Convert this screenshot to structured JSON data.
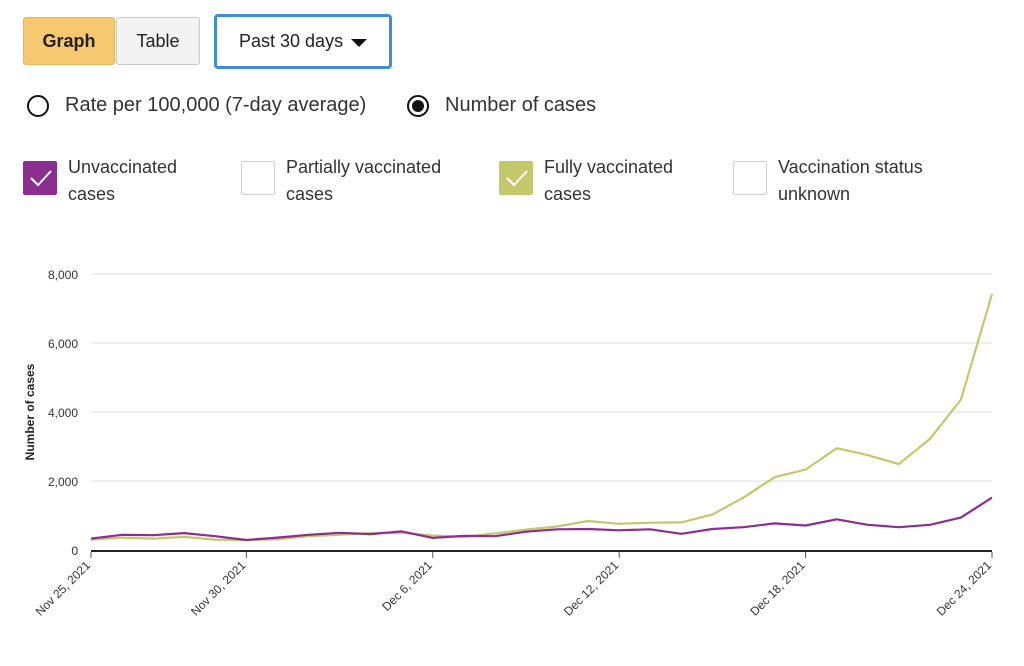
{
  "view_toggle": {
    "graph_label": "Graph",
    "table_label": "Table",
    "selected": "Graph"
  },
  "range_select": {
    "value": "Past 30 days"
  },
  "metric_radios": [
    {
      "label": "Rate per 100,000 (7-day average)",
      "selected": false
    },
    {
      "label": "Number of cases",
      "selected": true
    }
  ],
  "status_checkboxes": [
    {
      "label_line1": "Unvaccinated",
      "label_line2": "cases",
      "checked": true,
      "color": "#8b2e8f"
    },
    {
      "label_line1": "Partially vaccinated",
      "label_line2": "cases",
      "checked": false,
      "color": "#ffffff"
    },
    {
      "label_line1": "Fully vaccinated",
      "label_line2": "cases",
      "checked": true,
      "color": "#c3c86a"
    },
    {
      "label_line1": "Vaccination status",
      "label_line2": "unknown",
      "checked": false,
      "color": "#ffffff"
    }
  ],
  "chart_data": {
    "type": "line",
    "ylabel": "Number of cases",
    "ylim": [
      0,
      8000
    ],
    "yticks": [
      "0",
      "2,000",
      "4,000",
      "6,000",
      "8,000"
    ],
    "yticks_values": [
      0,
      2000,
      4000,
      6000,
      8000
    ],
    "x_tick_labels": [
      "Nov 25, 2021",
      "Nov 30, 2021",
      "Dec 6, 2021",
      "Dec 12, 2021",
      "Dec 18, 2021",
      "Dec 24, 2021"
    ],
    "x_tick_index": [
      0,
      5,
      11,
      17,
      23,
      29
    ],
    "x_labels_daily": [
      "Nov 25, 2021",
      "Nov 26, 2021",
      "Nov 27, 2021",
      "Nov 28, 2021",
      "Nov 29, 2021",
      "Nov 30, 2021",
      "Dec 1, 2021",
      "Dec 2, 2021",
      "Dec 3, 2021",
      "Dec 4, 2021",
      "Dec 5, 2021",
      "Dec 6, 2021",
      "Dec 7, 2021",
      "Dec 8, 2021",
      "Dec 9, 2021",
      "Dec 10, 2021",
      "Dec 11, 2021",
      "Dec 12, 2021",
      "Dec 13, 2021",
      "Dec 14, 2021",
      "Dec 15, 2021",
      "Dec 16, 2021",
      "Dec 17, 2021",
      "Dec 18, 2021",
      "Dec 19, 2021",
      "Dec 20, 2021",
      "Dec 21, 2021",
      "Dec 22, 2021",
      "Dec 23, 2021",
      "Dec 24, 2021"
    ],
    "grid": true,
    "series": [
      {
        "name": "Unvaccinated",
        "color": "#8b2e8f",
        "values": [
          330,
          440,
          430,
          490,
          400,
          290,
          360,
          440,
          500,
          460,
          540,
          350,
          410,
          400,
          530,
          600,
          610,
          570,
          600,
          470,
          610,
          660,
          770,
          710,
          890,
          730,
          660,
          730,
          940,
          1520
        ]
      },
      {
        "name": "Fully vaccinated",
        "color": "#c3c86a",
        "values": [
          300,
          360,
          330,
          380,
          300,
          290,
          310,
          400,
          440,
          490,
          500,
          420,
          380,
          480,
          590,
          680,
          840,
          760,
          790,
          800,
          1030,
          1520,
          2110,
          2330,
          2950,
          2750,
          2490,
          3220,
          4360,
          7420
        ]
      }
    ]
  }
}
